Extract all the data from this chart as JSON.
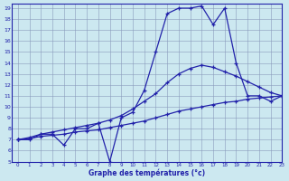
{
  "title": "Graphe des températures (°c)",
  "bg_color": "#cce8f0",
  "plot_bg_color": "#cce8f0",
  "grid_color": "#8899bb",
  "line_color": "#2222aa",
  "xlim": [
    -0.5,
    23
  ],
  "ylim": [
    5,
    19.4
  ],
  "xticks": [
    0,
    1,
    2,
    3,
    4,
    5,
    6,
    7,
    8,
    9,
    10,
    11,
    12,
    13,
    14,
    15,
    16,
    17,
    18,
    19,
    20,
    21,
    22,
    23
  ],
  "yticks": [
    5,
    6,
    7,
    8,
    9,
    10,
    11,
    12,
    13,
    14,
    15,
    16,
    17,
    18,
    19
  ],
  "hours": [
    0,
    1,
    2,
    3,
    4,
    5,
    6,
    7,
    8,
    9,
    10,
    11,
    12,
    13,
    14,
    15,
    16,
    17,
    18,
    19,
    20,
    21,
    22,
    23
  ],
  "temp_actual": [
    7.0,
    7.0,
    7.5,
    7.5,
    6.5,
    8.0,
    8.0,
    8.5,
    5.0,
    9.0,
    9.5,
    11.5,
    15.0,
    18.5,
    19.0,
    19.0,
    19.2,
    17.5,
    19.0,
    14.0,
    11.0,
    11.0,
    10.5,
    11.0
  ],
  "temp_smooth1": [
    7.0,
    7.1,
    7.3,
    7.4,
    7.5,
    7.7,
    7.8,
    7.9,
    8.1,
    8.3,
    8.5,
    8.7,
    9.0,
    9.3,
    9.6,
    9.8,
    10.0,
    10.2,
    10.4,
    10.5,
    10.7,
    10.8,
    10.9,
    11.0
  ],
  "temp_smooth2": [
    7.0,
    7.2,
    7.5,
    7.7,
    7.9,
    8.1,
    8.3,
    8.5,
    8.8,
    9.2,
    9.8,
    10.5,
    11.2,
    12.2,
    13.0,
    13.5,
    13.8,
    13.6,
    13.2,
    12.8,
    12.3,
    11.8,
    11.3,
    11.0
  ]
}
